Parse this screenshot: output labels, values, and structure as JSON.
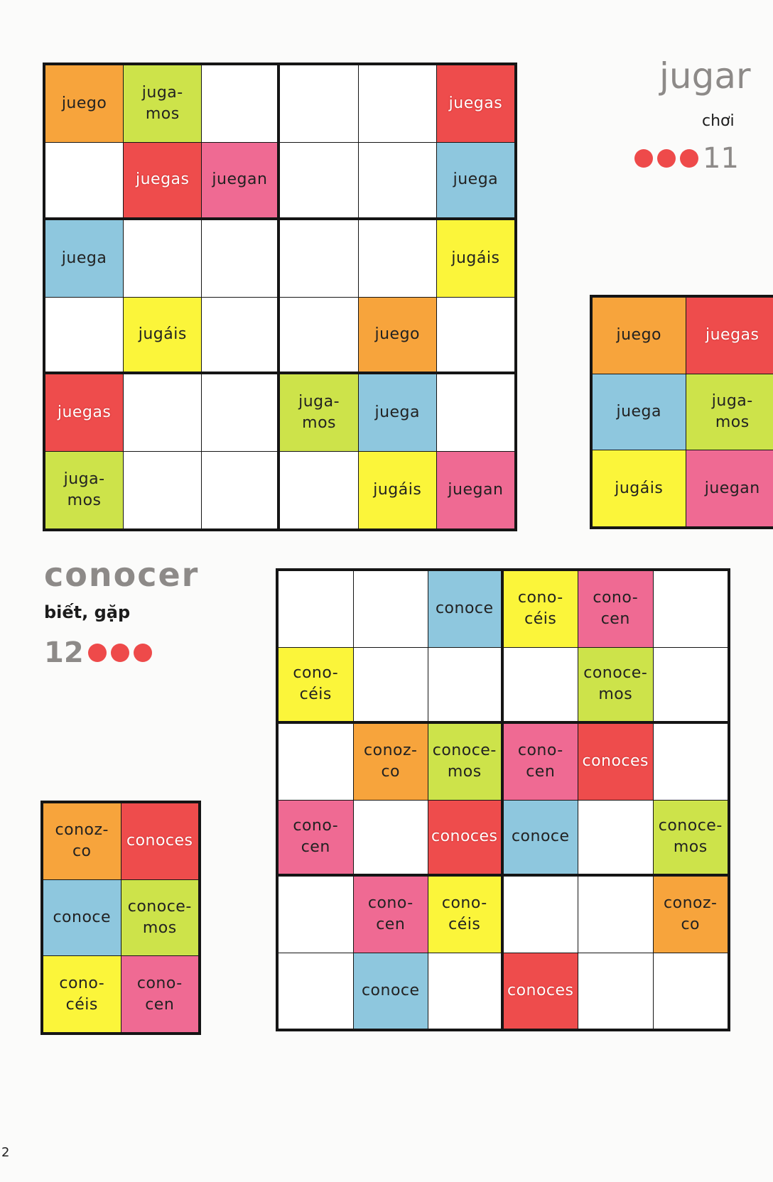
{
  "page_number": "2",
  "colors": {
    "orange": "#f7a43c",
    "lime": "#cde34a",
    "red": "#ee4c4c",
    "pink": "#ef6a93",
    "blue": "#8ec7de",
    "yellow": "#fbf53a"
  },
  "jugar": {
    "title": "jugar",
    "translation": "chơi",
    "puzzle_number": "11",
    "difficulty_dots": 3,
    "grid": [
      [
        {
          "t": "juego",
          "c": "orange"
        },
        {
          "t": "juga-\nmos",
          "c": "lime"
        },
        {
          "t": "",
          "c": ""
        },
        {
          "t": "",
          "c": ""
        },
        {
          "t": "",
          "c": ""
        },
        {
          "t": "juegas",
          "c": "red"
        }
      ],
      [
        {
          "t": "",
          "c": ""
        },
        {
          "t": "juegas",
          "c": "red"
        },
        {
          "t": "juegan",
          "c": "pink"
        },
        {
          "t": "",
          "c": ""
        },
        {
          "t": "",
          "c": ""
        },
        {
          "t": "juega",
          "c": "blue"
        }
      ],
      [
        {
          "t": "juega",
          "c": "blue"
        },
        {
          "t": "",
          "c": ""
        },
        {
          "t": "",
          "c": ""
        },
        {
          "t": "",
          "c": ""
        },
        {
          "t": "",
          "c": ""
        },
        {
          "t": "jugáis",
          "c": "yellow"
        }
      ],
      [
        {
          "t": "",
          "c": ""
        },
        {
          "t": "jugáis",
          "c": "yellow"
        },
        {
          "t": "",
          "c": ""
        },
        {
          "t": "",
          "c": ""
        },
        {
          "t": "juego",
          "c": "orange"
        },
        {
          "t": "",
          "c": ""
        }
      ],
      [
        {
          "t": "juegas",
          "c": "red"
        },
        {
          "t": "",
          "c": ""
        },
        {
          "t": "",
          "c": ""
        },
        {
          "t": "juga-\nmos",
          "c": "lime"
        },
        {
          "t": "juega",
          "c": "blue"
        },
        {
          "t": "",
          "c": ""
        }
      ],
      [
        {
          "t": "juga-\nmos",
          "c": "lime"
        },
        {
          "t": "",
          "c": ""
        },
        {
          "t": "",
          "c": ""
        },
        {
          "t": "",
          "c": ""
        },
        {
          "t": "jugáis",
          "c": "yellow"
        },
        {
          "t": "juegan",
          "c": "pink"
        }
      ]
    ],
    "legend": [
      [
        {
          "t": "juego",
          "c": "orange"
        },
        {
          "t": "juegas",
          "c": "red"
        }
      ],
      [
        {
          "t": "juega",
          "c": "blue"
        },
        {
          "t": "juga-\nmos",
          "c": "lime"
        }
      ],
      [
        {
          "t": "jugáis",
          "c": "yellow"
        },
        {
          "t": "juegan",
          "c": "pink"
        }
      ]
    ]
  },
  "conocer": {
    "title": "conocer",
    "translation": "biết, gặp",
    "puzzle_number": "12",
    "difficulty_dots": 3,
    "grid": [
      [
        {
          "t": "",
          "c": ""
        },
        {
          "t": "",
          "c": ""
        },
        {
          "t": "conoce",
          "c": "blue"
        },
        {
          "t": "cono-\ncéis",
          "c": "yellow"
        },
        {
          "t": "cono-\ncen",
          "c": "pink"
        },
        {
          "t": "",
          "c": ""
        }
      ],
      [
        {
          "t": "cono-\ncéis",
          "c": "yellow"
        },
        {
          "t": "",
          "c": ""
        },
        {
          "t": "",
          "c": ""
        },
        {
          "t": "",
          "c": ""
        },
        {
          "t": "conoce-\nmos",
          "c": "lime"
        },
        {
          "t": "",
          "c": ""
        }
      ],
      [
        {
          "t": "",
          "c": ""
        },
        {
          "t": "conoz-\nco",
          "c": "orange"
        },
        {
          "t": "conoce-\nmos",
          "c": "lime"
        },
        {
          "t": "cono-\ncen",
          "c": "pink"
        },
        {
          "t": "conoces",
          "c": "red"
        },
        {
          "t": "",
          "c": ""
        }
      ],
      [
        {
          "t": "cono-\ncen",
          "c": "pink"
        },
        {
          "t": "",
          "c": ""
        },
        {
          "t": "conoces",
          "c": "red"
        },
        {
          "t": "conoce",
          "c": "blue"
        },
        {
          "t": "",
          "c": ""
        },
        {
          "t": "conoce-\nmos",
          "c": "lime"
        }
      ],
      [
        {
          "t": "",
          "c": ""
        },
        {
          "t": "cono-\ncen",
          "c": "pink"
        },
        {
          "t": "cono-\ncéis",
          "c": "yellow"
        },
        {
          "t": "",
          "c": ""
        },
        {
          "t": "",
          "c": ""
        },
        {
          "t": "conoz-\nco",
          "c": "orange"
        }
      ],
      [
        {
          "t": "",
          "c": ""
        },
        {
          "t": "conoce",
          "c": "blue"
        },
        {
          "t": "",
          "c": ""
        },
        {
          "t": "conoces",
          "c": "red"
        },
        {
          "t": "",
          "c": ""
        },
        {
          "t": "",
          "c": ""
        }
      ]
    ],
    "legend": [
      [
        {
          "t": "conoz-\nco",
          "c": "orange"
        },
        {
          "t": "conoces",
          "c": "red"
        }
      ],
      [
        {
          "t": "conoce",
          "c": "blue"
        },
        {
          "t": "conoce-\nmos",
          "c": "lime"
        }
      ],
      [
        {
          "t": "cono-\ncéis",
          "c": "yellow"
        },
        {
          "t": "cono-\ncen",
          "c": "pink"
        }
      ]
    ]
  }
}
